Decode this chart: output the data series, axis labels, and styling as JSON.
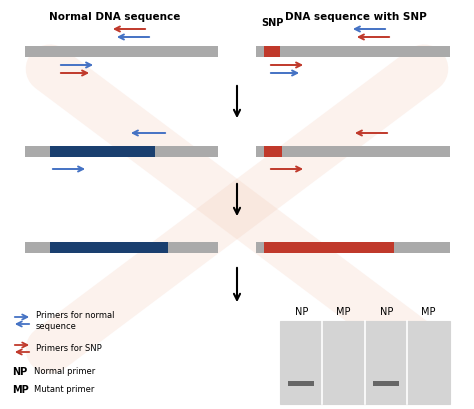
{
  "bg_color": "#ffffff",
  "title_left": "Normal DNA sequence",
  "title_right": "DNA sequence with SNP",
  "gray_color": "#aaaaaa",
  "blue_color": "#1a3f6f",
  "red_color": "#c0392b",
  "arrow_blue": "#4472c4",
  "arrow_red": "#c0392b",
  "gel_color": "#d4d4d4",
  "band_color": "#666666",
  "gel_labels": [
    "NP",
    "MP",
    "NP",
    "MP"
  ],
  "snp_label": "SNP"
}
